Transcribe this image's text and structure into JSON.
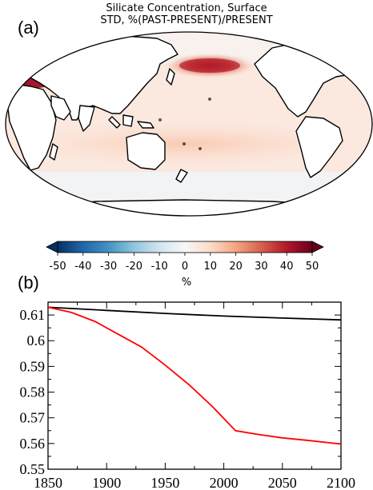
{
  "panel_a": {
    "label": "(a)",
    "title_line1": "Silicate Concentration, Surface",
    "title_line2": "STD, %(PAST-PRESENT)/PRESENT",
    "colorbar": {
      "ticks": [
        "-50",
        "-40",
        "-30",
        "-20",
        "-10",
        "0",
        "10",
        "20",
        "30",
        "40",
        "50"
      ],
      "unit": "%",
      "colors": [
        "#053061",
        "#2166ac",
        "#4393c3",
        "#92c5de",
        "#d1e5f0",
        "#f7f7f7",
        "#fddbc7",
        "#f4a582",
        "#d6604d",
        "#b2182b",
        "#67001f"
      ]
    }
  },
  "panel_b": {
    "label": "(b)"
  },
  "chart_data": [
    {
      "type": "map",
      "title": "Silicate Concentration, Surface",
      "subtitle": "STD, %(PAST-PRESENT)/PRESENT",
      "colorbar_range": [
        -50,
        50
      ],
      "colorbar_unit": "%",
      "features": [
        {
          "region": "North Pacific",
          "value_percent": 40
        },
        {
          "region": "Mediterranean Sea",
          "value_percent": 45
        },
        {
          "region": "Tropical / Subtropical ocean",
          "value_percent": 10
        },
        {
          "region": "Southern Ocean",
          "value_percent": 3
        }
      ]
    },
    {
      "type": "line",
      "xlim": [
        1850,
        2100
      ],
      "ylim": [
        0.55,
        0.615
      ],
      "xticks": [
        1850,
        1900,
        1950,
        2000,
        2050,
        2100
      ],
      "yticks": [
        0.55,
        0.56,
        0.57,
        0.58,
        0.59,
        0.6,
        0.61
      ],
      "ytick_labels": [
        "0.55",
        "0.56",
        "0.57",
        "0.58",
        "0.59",
        "0.6",
        "0.61"
      ],
      "series": [
        {
          "color": "#000000",
          "x": [
            1850,
            1900,
            1950,
            2000,
            2050,
            2100
          ],
          "y": [
            0.613,
            0.6118,
            0.6106,
            0.6096,
            0.6088,
            0.6081
          ]
        },
        {
          "color": "#ff0000",
          "x": [
            1850,
            1870,
            1890,
            1910,
            1930,
            1950,
            1970,
            1990,
            2010,
            2030,
            2050,
            2070,
            2100
          ],
          "y": [
            0.613,
            0.611,
            0.6075,
            0.6025,
            0.5975,
            0.5905,
            0.583,
            0.5745,
            0.565,
            0.5635,
            0.5622,
            0.5613,
            0.5598
          ]
        }
      ]
    }
  ]
}
